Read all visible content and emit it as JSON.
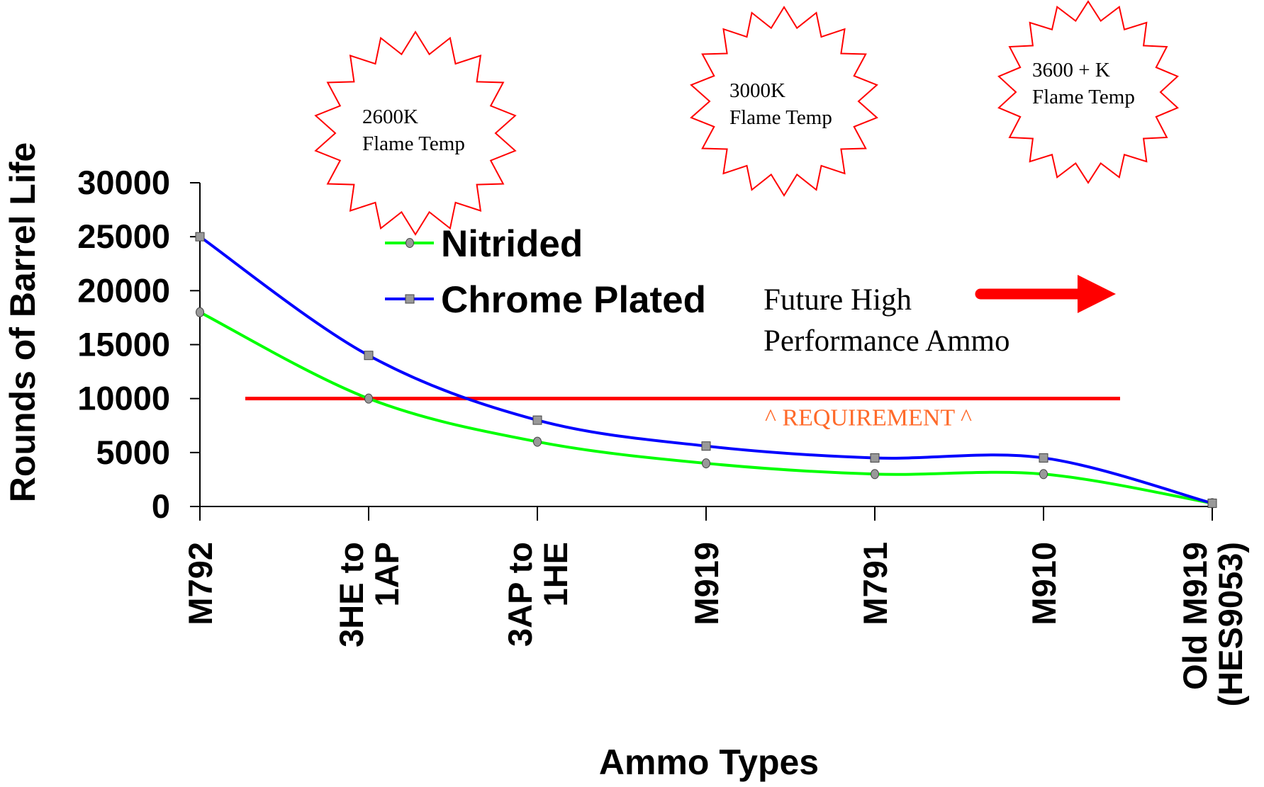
{
  "chart_data": {
    "type": "line",
    "xlabel": "Ammo Types",
    "ylabel": "Rounds of Barrel Life",
    "categories": [
      [
        "M792"
      ],
      [
        "3HE to",
        "1AP"
      ],
      [
        "3AP to",
        "1HE"
      ],
      [
        "M919"
      ],
      [
        "M791"
      ],
      [
        "M910"
      ],
      [
        "Old M919",
        "(HES9053)"
      ]
    ],
    "ylim": [
      0,
      30000
    ],
    "yticks": [
      "0",
      "5000",
      "10000",
      "15000",
      "20000",
      "25000",
      "30000"
    ],
    "series": [
      {
        "name": "Nitrided",
        "color": "#00ff00",
        "marker": "circle",
        "values": [
          18000,
          10000,
          6000,
          4000,
          3000,
          3000,
          300
        ]
      },
      {
        "name": "Chrome Plated",
        "color": "#0000ff",
        "marker": "square",
        "values": [
          25000,
          14000,
          8000,
          5600,
          4500,
          4500,
          300
        ]
      }
    ],
    "requirement": {
      "value": 10000,
      "label": "^ REQUIREMENT ^",
      "color": "#ff0000",
      "label_color": "#ff6a2a"
    },
    "annotations": {
      "bursts": [
        {
          "lines": [
            "2600K",
            "Flame Temp"
          ]
        },
        {
          "lines": [
            "3000K",
            "Flame Temp"
          ]
        },
        {
          "lines": [
            "3600 + K",
            "Flame Temp"
          ]
        }
      ],
      "future": {
        "lines": [
          "Future High",
          "Performance Ammo"
        ],
        "arrow_color": "#ff0000"
      }
    },
    "grid": false,
    "legend_position": "center"
  }
}
